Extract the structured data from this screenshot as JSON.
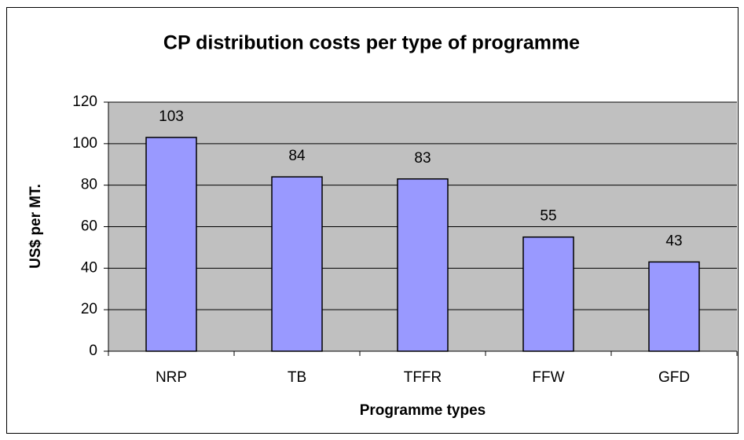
{
  "chart_data": {
    "type": "bar",
    "title": "CP distribution costs per type of programme",
    "x_label": "Programme types",
    "y_label": "US$ per MT.",
    "categories": [
      "NRP",
      "TB",
      "TFFR",
      "FFW",
      "GFD"
    ],
    "values": [
      103,
      84,
      83,
      55,
      43
    ],
    "color": "#9999ff",
    "ylim": [
      0,
      120
    ],
    "yticks": [
      0,
      20,
      40,
      60,
      80,
      100,
      120
    ],
    "grid": true
  }
}
